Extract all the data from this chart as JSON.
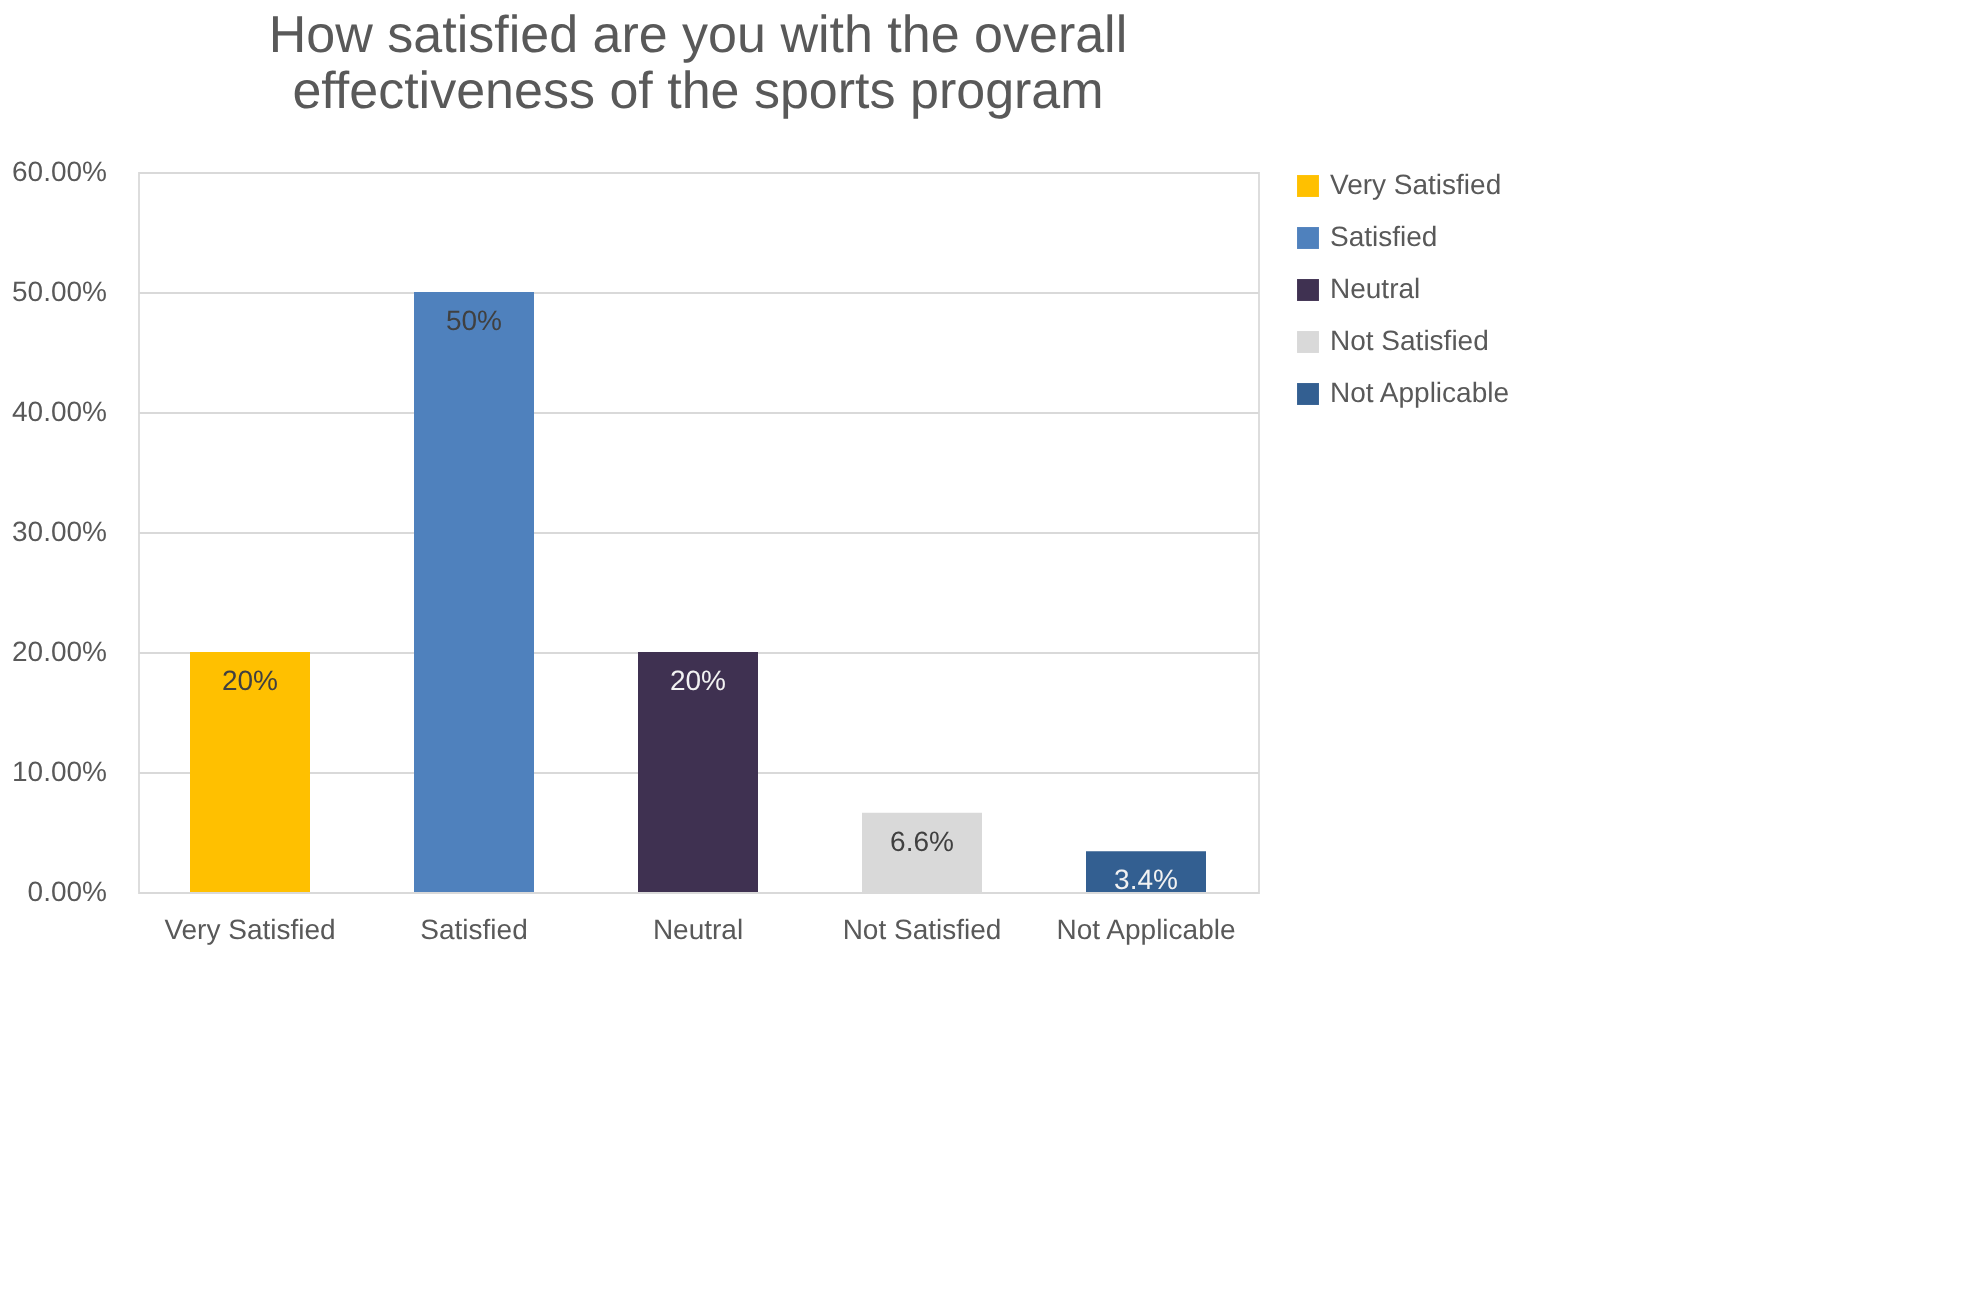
{
  "chart_data": {
    "type": "bar",
    "title": "How satisfied are you with the overall effectiveness of the sports program",
    "categories": [
      "Very Satisfied",
      "Satisfied",
      "Neutral",
      "Not Satisfied",
      "Not Applicable"
    ],
    "series": [
      {
        "name": "Very Satisfied",
        "color": "#ffc000",
        "values": [
          20,
          null,
          null,
          null,
          null
        ],
        "value_labels": [
          "20%",
          null,
          null,
          null,
          null
        ]
      },
      {
        "name": "Satisfied",
        "color": "#4f81bd",
        "values": [
          null,
          50,
          null,
          null,
          null
        ],
        "value_labels": [
          null,
          "50%",
          null,
          null,
          null
        ]
      },
      {
        "name": "Neutral",
        "color": "#3f3151",
        "values": [
          null,
          null,
          20,
          null,
          null
        ],
        "value_labels": [
          null,
          null,
          "20%",
          null,
          null
        ]
      },
      {
        "name": "Not Satisfied",
        "color": "#d9d9d9",
        "values": [
          null,
          null,
          null,
          6.6,
          null
        ],
        "value_labels": [
          null,
          null,
          null,
          "6.6%",
          null
        ]
      },
      {
        "name": "Not Applicable",
        "color": "#335f91",
        "values": [
          null,
          null,
          null,
          null,
          3.4
        ],
        "value_labels": [
          null,
          null,
          null,
          null,
          "3.4%"
        ]
      }
    ],
    "ylim": [
      0,
      60
    ],
    "yticks": [
      {
        "value": 0,
        "label": "0.00%"
      },
      {
        "value": 10,
        "label": "10.00%"
      },
      {
        "value": 20,
        "label": "20.00%"
      },
      {
        "value": 30,
        "label": "30.00%"
      },
      {
        "value": 40,
        "label": "40.00%"
      },
      {
        "value": 50,
        "label": "50.00%"
      },
      {
        "value": 60,
        "label": "60.00%"
      }
    ],
    "grid": "y",
    "legend": "right"
  }
}
